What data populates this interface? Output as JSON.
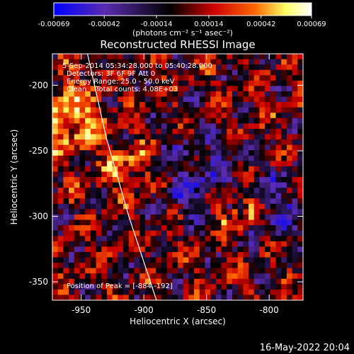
{
  "chart_data": {
    "type": "heatmap",
    "title": "Reconstructed RHESSI Image",
    "xlabel": "Heliocentric X (arcsec)",
    "ylabel": "Heliocentric Y (arcsec)",
    "xlim": [
      -973,
      -773
    ],
    "ylim": [
      -364,
      -176
    ],
    "x_ticks": [
      -950,
      -900,
      -850,
      -800
    ],
    "y_ticks": [
      -200,
      -250,
      -300,
      -350
    ],
    "colorbar": {
      "ticks": [
        "-0.00069",
        "-0.00042",
        "-0.00014",
        "0.00014",
        "0.00042",
        "0.00069"
      ],
      "range": [
        -0.00069,
        0.00069
      ],
      "unit_label": "(photons cm⁻² s⁻¹ asec⁻²)",
      "colormap": [
        "#0000ff",
        "#5a2cb0",
        "#000000",
        "#cc0000",
        "#ff6600",
        "#ffff66",
        "#ffffff"
      ]
    },
    "annotations": [
      "5-Sep-2014 05:34:28.000 to 05:40:28.000",
      "Detectors: 3F 6F 9F Att 0",
      "Energy Range: 25.0 - 50.0 keV",
      "Clean    Total counts: 4.08E+03"
    ],
    "peak_label": "Position of Peak = [-884,-192]",
    "peak": [
      -884,
      -192
    ],
    "limb_arc": [
      [
        -945,
        -176
      ],
      [
        -930,
        -240
      ],
      [
        -912,
        -300
      ],
      [
        -890,
        -364
      ]
    ]
  },
  "footer_date": "16-May-2022 20:04"
}
